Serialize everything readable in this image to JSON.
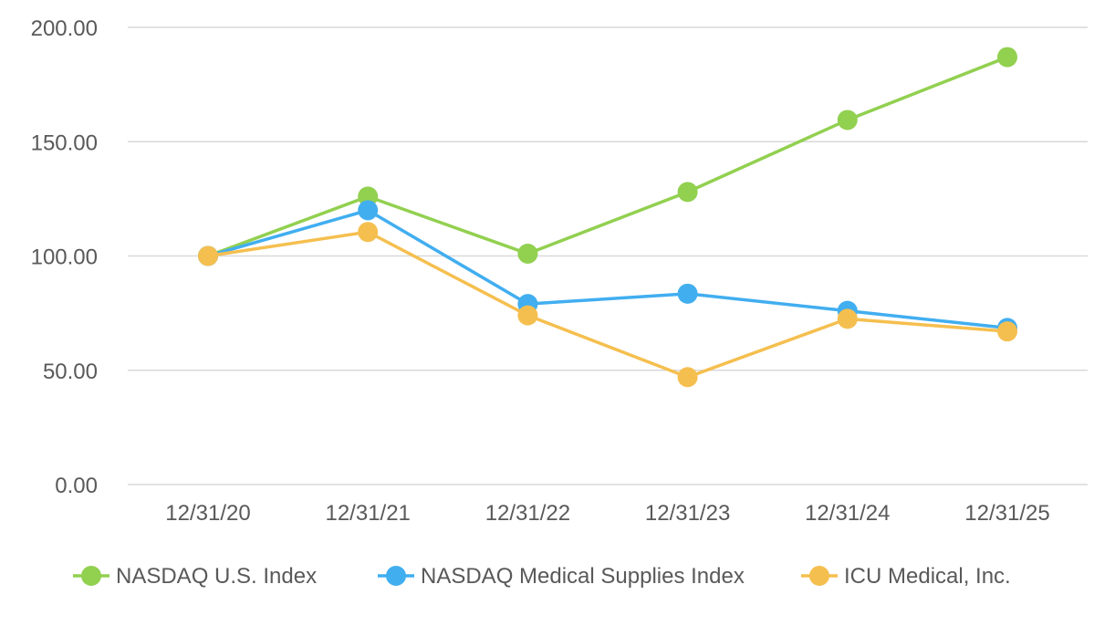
{
  "chart_data": {
    "type": "line",
    "title": "",
    "xlabel": "",
    "ylabel": "",
    "categories": [
      "12/31/20",
      "12/31/21",
      "12/31/22",
      "12/31/23",
      "12/31/24",
      "12/31/25"
    ],
    "ylim": [
      0,
      200
    ],
    "yticks": [
      "0.00",
      "50.00",
      "100.00",
      "150.00",
      "200.00"
    ],
    "ytick_values": [
      0,
      50,
      100,
      150,
      200
    ],
    "grid": true,
    "legend_position": "bottom",
    "series": [
      {
        "name": "NASDAQ U.S. Index",
        "color": "#92d050",
        "values": [
          100,
          126,
          101,
          128,
          159.5,
          187
        ]
      },
      {
        "name": "NASDAQ Medical Supplies Index",
        "color": "#41aef0",
        "values": [
          100,
          120,
          79,
          83.5,
          76,
          68.5
        ]
      },
      {
        "name": "ICU Medical, Inc.",
        "color": "#f5bf4f",
        "values": [
          100,
          110.5,
          74,
          47,
          72.5,
          67
        ]
      }
    ]
  }
}
